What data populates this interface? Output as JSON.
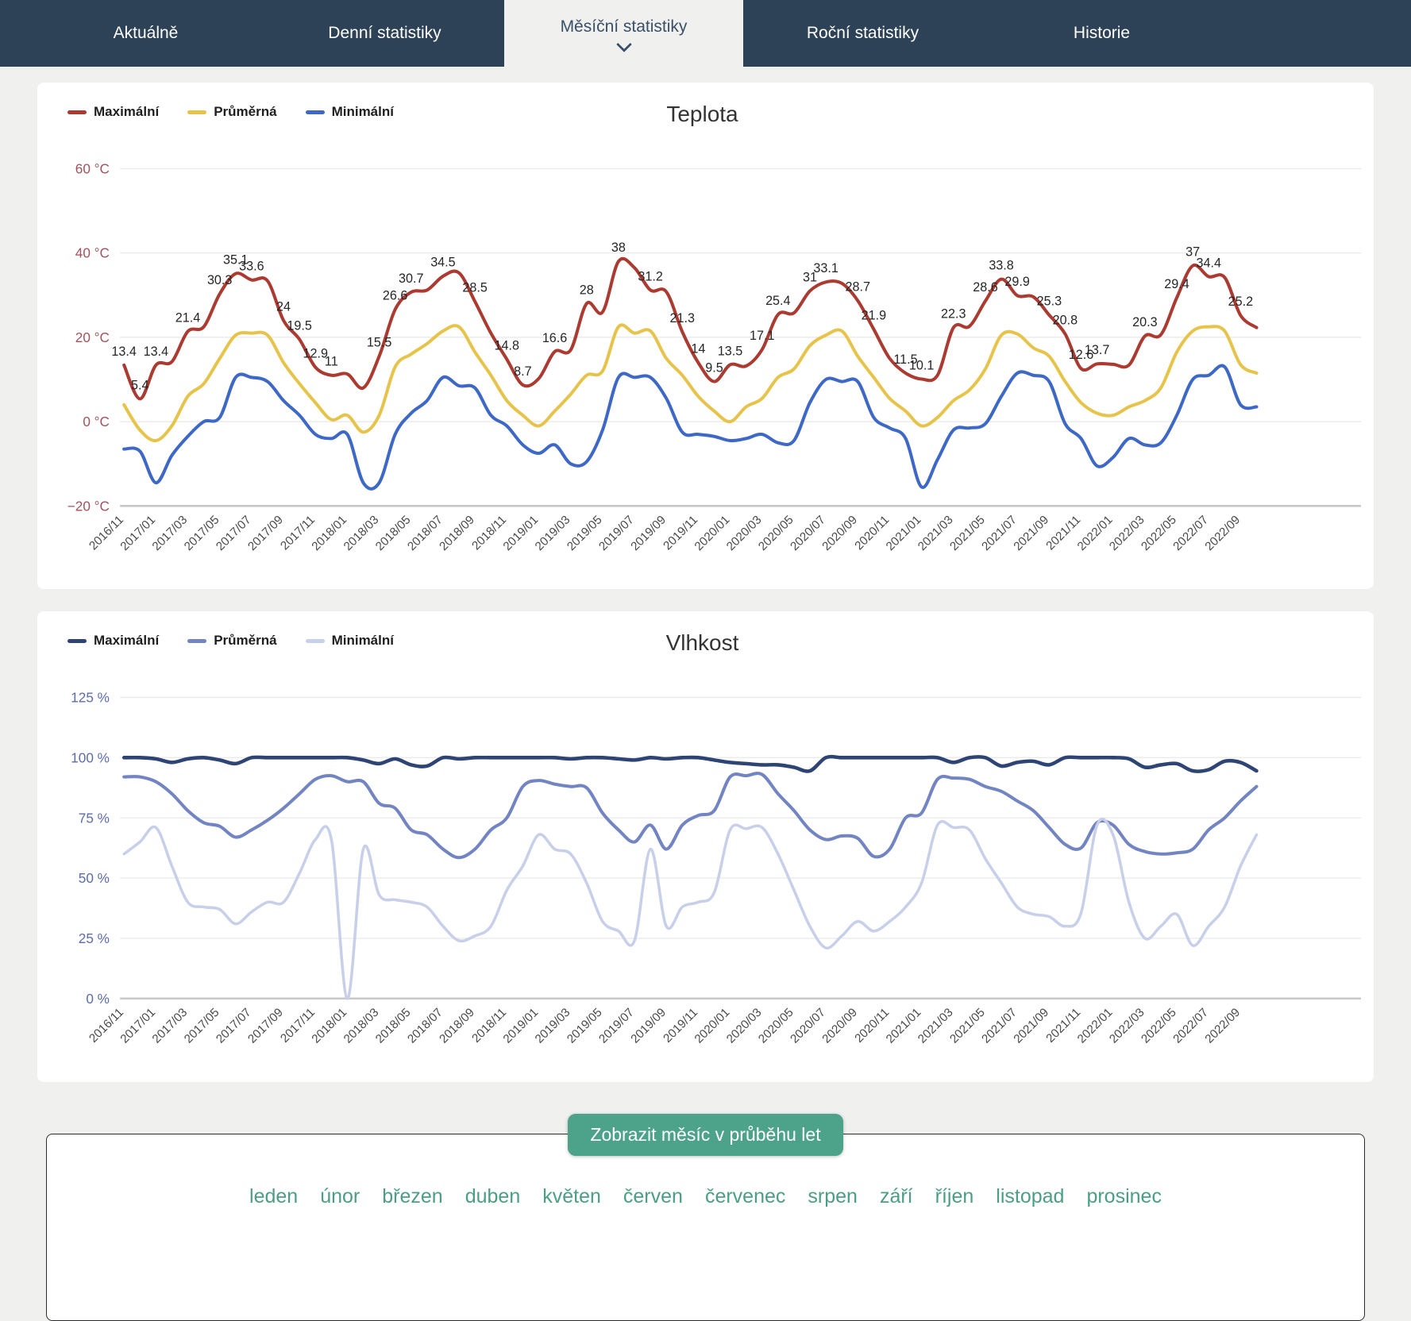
{
  "nav": {
    "tabs": [
      {
        "label": "Aktuálně"
      },
      {
        "label": "Denní statistiky"
      },
      {
        "label": "Měsíční statistiky"
      },
      {
        "label": "Roční statistiky"
      },
      {
        "label": "Historie"
      }
    ],
    "active_index": 2
  },
  "x_labels": [
    "2016/11",
    "2017/01",
    "2017/03",
    "2017/05",
    "2017/07",
    "2017/09",
    "2017/11",
    "2018/01",
    "2018/03",
    "2018/05",
    "2018/07",
    "2018/09",
    "2018/11",
    "2019/01",
    "2019/03",
    "2019/05",
    "2019/07",
    "2019/09",
    "2019/11",
    "2020/01",
    "2020/03",
    "2020/05",
    "2020/07",
    "2020/09",
    "2020/11",
    "2021/01",
    "2021/03",
    "2021/05",
    "2021/07",
    "2021/09",
    "2021/11",
    "2022/01",
    "2022/03",
    "2022/05",
    "2022/07",
    "2022/09"
  ],
  "charts": [
    {
      "key": "teplota",
      "svg_id": "temp-svg",
      "title": "Teplota",
      "type": "line",
      "y_axis_color": "#a4525b",
      "y_ticks": [
        {
          "v": 60,
          "label": "60 °C"
        },
        {
          "v": 40,
          "label": "40 °C"
        },
        {
          "v": 20,
          "label": "20 °C"
        },
        {
          "v": 0,
          "label": "0 °C"
        },
        {
          "v": -20,
          "label": "−20 °C"
        }
      ],
      "series": [
        {
          "key": "max",
          "name": "Maximální",
          "color": "#ab3a31",
          "width": 4,
          "values": [
            13.4,
            5.4,
            13.4,
            14.2,
            21.4,
            22.5,
            30.3,
            35.1,
            33.6,
            33.4,
            24,
            19.5,
            12.9,
            11,
            11.3,
            8,
            15.5,
            26.6,
            30.7,
            31.2,
            34.5,
            35.3,
            28.5,
            21,
            14.8,
            8.7,
            10.2,
            16.6,
            17,
            28,
            26,
            38,
            36.5,
            31.2,
            30.8,
            21.3,
            14,
            9.5,
            13.5,
            13.2,
            17.1,
            25.4,
            25.8,
            31,
            33.1,
            32.8,
            28.7,
            21.9,
            15,
            11.5,
            10.1,
            11,
            22.3,
            22.6,
            28.6,
            33.8,
            29.9,
            29.6,
            25.3,
            20.8,
            12.6,
            13.7,
            13.6,
            13.4,
            20.3,
            20.6,
            29.4,
            37,
            34.4,
            34.2,
            25.2,
            22.3
          ]
        },
        {
          "key": "avg",
          "name": "Průměrná",
          "color": "#e6c44c",
          "width": 4,
          "values": [
            4,
            -2,
            -4.5,
            -1,
            6,
            9,
            15,
            20.5,
            21,
            20.5,
            14,
            9,
            4.5,
            0.5,
            1.5,
            -2.5,
            1.5,
            13,
            16,
            18.5,
            21.5,
            22.5,
            16.5,
            11,
            5,
            1.5,
            -1,
            2.5,
            6.5,
            11,
            12,
            22.5,
            21,
            21.5,
            15,
            11,
            6,
            2.5,
            0,
            3.5,
            5.5,
            10.5,
            12.5,
            18,
            20.5,
            21.5,
            15.5,
            10.5,
            5.5,
            2.5,
            -1,
            1,
            5,
            7.5,
            12.5,
            20.5,
            20.8,
            17.5,
            15.5,
            9.5,
            4.5,
            2,
            1.5,
            3.5,
            5,
            8,
            16.5,
            21.5,
            22.5,
            21.5,
            13.5,
            11.5
          ]
        },
        {
          "key": "min",
          "name": "Minimální",
          "color": "#3e68c6",
          "width": 4,
          "values": [
            -6.5,
            -7,
            -14.5,
            -8,
            -3.5,
            0,
            1,
            10.5,
            10.5,
            9.5,
            5,
            1.5,
            -3,
            -4,
            -3,
            -14.5,
            -14.5,
            -3,
            2,
            5,
            10.5,
            8.5,
            8,
            1.5,
            -1,
            -5.5,
            -7.5,
            -5.5,
            -10,
            -9.5,
            -2,
            10.5,
            10.5,
            10.5,
            5.5,
            -2.5,
            -3,
            -3.5,
            -4.5,
            -4,
            -3,
            -5,
            -4.5,
            4.5,
            10,
            9.5,
            9.5,
            1,
            -1.5,
            -4,
            -15.5,
            -9,
            -2,
            -1.5,
            -0.5,
            6,
            11.5,
            11,
            9.5,
            -0.5,
            -4,
            -10.5,
            -8.5,
            -4,
            -5.5,
            -5,
            1.5,
            10,
            11,
            13,
            4,
            3.5
          ]
        }
      ],
      "point_labels": {
        "0": "13.4",
        "1": "5.4",
        "2": "13.4",
        "4": "21.4",
        "6": "30.3",
        "7": "35.1",
        "8": "33.6",
        "10": "24",
        "11": "19.5",
        "12": "12.9",
        "13": "11",
        "16": "15.5",
        "17": "26.6",
        "18": "30.7",
        "20": "34.5",
        "22": "28.5",
        "24": "14.8",
        "25": "8.7",
        "27": "16.6",
        "29": "28",
        "31": "38",
        "33": "31.2",
        "35": "21.3",
        "36": "14",
        "37": "9.5",
        "38": "13.5",
        "40": "17.1",
        "41": "25.4",
        "43": "31",
        "44": "33.1",
        "46": "28.7",
        "47": "21.9",
        "49": "11.5",
        "50": "10.1",
        "52": "22.3",
        "54": "28.6",
        "55": "33.8",
        "56": "29.9",
        "58": "25.3",
        "59": "20.8",
        "60": "12.6",
        "61": "13.7",
        "64": "20.3",
        "66": "29.4",
        "67": "37",
        "68": "34.4",
        "70": "25.2"
      }
    },
    {
      "key": "vlhkost",
      "svg_id": "hum-svg",
      "title": "Vlhkost",
      "type": "line",
      "y_axis_color": "#5d6cae",
      "y_ticks": [
        {
          "v": 125,
          "label": "125 %"
        },
        {
          "v": 100,
          "label": "100 %"
        },
        {
          "v": 75,
          "label": "75 %"
        },
        {
          "v": 50,
          "label": "50 %"
        },
        {
          "v": 25,
          "label": "25 %"
        },
        {
          "v": 0,
          "label": "0 %"
        }
      ],
      "series": [
        {
          "key": "max",
          "name": "Maximální",
          "color": "#2e4475",
          "width": 4.5,
          "values": [
            100,
            100,
            99.5,
            98,
            99.5,
            100,
            99,
            97.5,
            100,
            100,
            100,
            100,
            100,
            100,
            100,
            99,
            97.5,
            99.5,
            97,
            96.5,
            100,
            99.5,
            100,
            100,
            100,
            100,
            100,
            100,
            99.5,
            100,
            100,
            99.5,
            99,
            100,
            99.5,
            100,
            100,
            99,
            98,
            97.5,
            97,
            97,
            96,
            94.5,
            100,
            100,
            100,
            100,
            100,
            100,
            100,
            100,
            98,
            100,
            100,
            96.5,
            98,
            98.5,
            97,
            100,
            100,
            100,
            100,
            99.5,
            96,
            97,
            97.5,
            94.5,
            95,
            98.5,
            98,
            94.5
          ]
        },
        {
          "key": "avg",
          "name": "Průměrná",
          "color": "#7285c2",
          "width": 4,
          "values": [
            92,
            92,
            90,
            85,
            78,
            73,
            71.5,
            67,
            70,
            74,
            79,
            85,
            91,
            92.5,
            90,
            90,
            81,
            79,
            70,
            68,
            62,
            58.5,
            62,
            70,
            75,
            88,
            90.5,
            89,
            88,
            87.5,
            77,
            70,
            65,
            72,
            62,
            72,
            76,
            78,
            92,
            92.5,
            93,
            85,
            78,
            70,
            66,
            67.5,
            66.5,
            59,
            62,
            75,
            77,
            91,
            91.5,
            91,
            88,
            86,
            82,
            78,
            71,
            64,
            62.5,
            73,
            72,
            64,
            61,
            60,
            60.5,
            62,
            70,
            75,
            82,
            88
          ]
        },
        {
          "key": "min",
          "name": "Minimální",
          "color": "#c8cfe9",
          "width": 3.5,
          "values": [
            60,
            65,
            71,
            55,
            40,
            38,
            37,
            31,
            36,
            40,
            40,
            52,
            66,
            66,
            0,
            62,
            43,
            41,
            40,
            38,
            30,
            24,
            26,
            30,
            45,
            55,
            68,
            62,
            60,
            48,
            32,
            28,
            24,
            62,
            30,
            38,
            40,
            44,
            70,
            70.5,
            71,
            60,
            45,
            30,
            21,
            26,
            32,
            28,
            32,
            38,
            48,
            72,
            71,
            70,
            58,
            48,
            38,
            35,
            34,
            30,
            35.5,
            72,
            68,
            40,
            25,
            30,
            35,
            22,
            30,
            38,
            55,
            68
          ]
        }
      ],
      "point_labels": null
    }
  ],
  "footer": {
    "button_label": "Zobrazit měsíc v průběhu let",
    "months": [
      "leden",
      "únor",
      "březen",
      "duben",
      "květen",
      "červen",
      "červenec",
      "srpen",
      "září",
      "říjen",
      "listopad",
      "prosinec"
    ]
  },
  "colors": {
    "page_bg": "#f0f0ef",
    "nav_bg": "#2d4256",
    "nav_text": "#ffffff",
    "nav_active_text": "#3a5068",
    "grid_line": "#e7e7e7",
    "axis_line": "#c8c8c8",
    "x_label": "#4a4a4a",
    "point_label": "#262626",
    "button_bg": "#4da28a",
    "month_link": "#4b9e85"
  }
}
